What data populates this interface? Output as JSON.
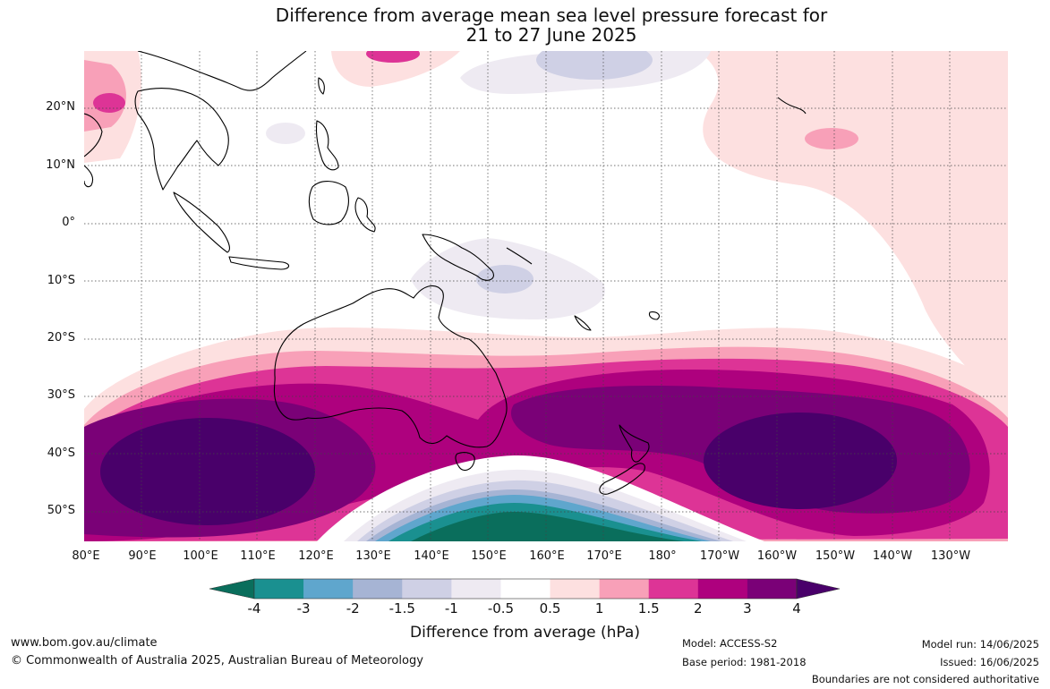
{
  "title_line1": "Difference from average mean sea level pressure forecast for",
  "title_line2": "21 to 27 June 2025",
  "lat_labels": [
    "20°N",
    "10°N",
    "0°",
    "10°S",
    "20°S",
    "30°S",
    "40°S",
    "50°S"
  ],
  "lon_labels": [
    "80°E",
    "90°E",
    "100°E",
    "110°E",
    "120°E",
    "130°E",
    "140°E",
    "150°E",
    "160°E",
    "170°E",
    "180°",
    "170°W",
    "160°W",
    "150°W",
    "140°W",
    "130°W"
  ],
  "colorbar": {
    "ticks": [
      "-4",
      "-3",
      "-2",
      "-1.5",
      "-1",
      "-0.5",
      "0.5",
      "1",
      "1.5",
      "2",
      "3",
      "4"
    ],
    "colors": [
      "#0a6e5c",
      "#1a9090",
      "#5fa6cd",
      "#a6b4d4",
      "#cfd0e5",
      "#eeeaf2",
      "#ffffff",
      "#fde0e0",
      "#f8a0b8",
      "#dd3496",
      "#ae017e",
      "#7a0177",
      "#49006a"
    ],
    "title": "Difference from average (hPa)"
  },
  "footer": {
    "url": "www.bom.gov.au/climate",
    "copyright": "© Commonwealth of Australia 2025, Australian Bureau of Meteorology",
    "model": "Model: ACCESS-S2",
    "base_period": "Base period: 1981-2018",
    "model_run": "Model run: 14/06/2025",
    "issued": "Issued: 16/06/2025",
    "disclaimer": "Boundaries are not considered authoritative"
  }
}
